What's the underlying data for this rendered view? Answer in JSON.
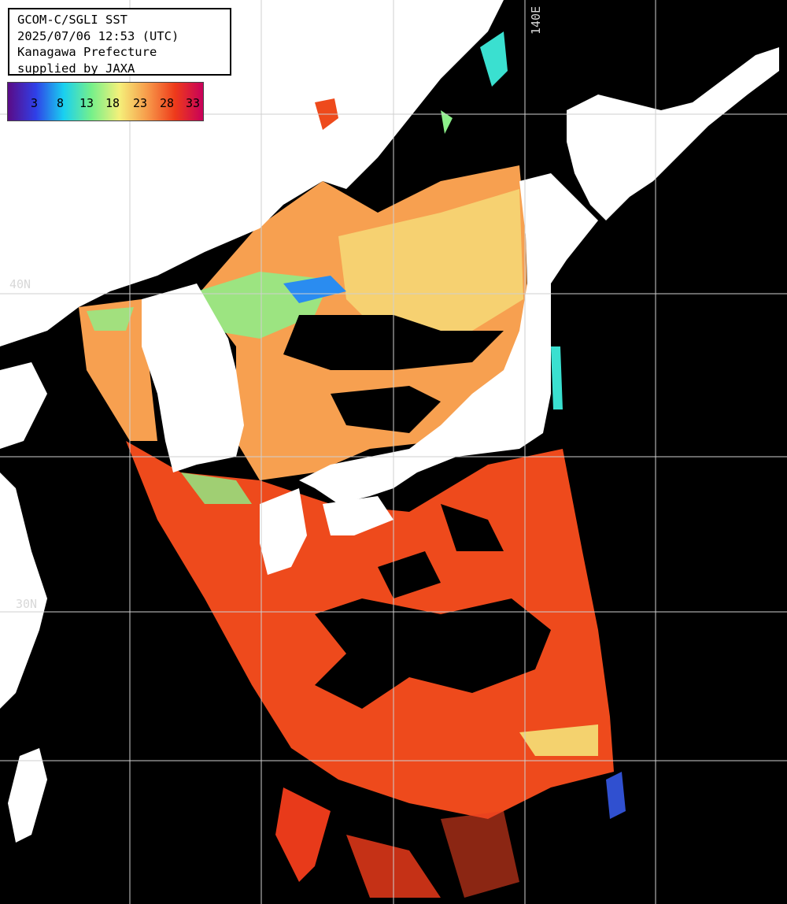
{
  "title": {
    "line1": "GCOM-C/SGLI SST",
    "line2": "2025/07/06 12:53 (UTC)",
    "line3": "Kanagawa Prefecture",
    "line4": "supplied by JAXA"
  },
  "colorbar": {
    "labels": [
      "3",
      "8",
      "13",
      "18",
      "23",
      "28",
      "33"
    ],
    "colors": [
      "#5a0b86",
      "#2f40e8",
      "#19d0f0",
      "#76f08a",
      "#f5f07a",
      "#f79a4a",
      "#ee3a1a",
      "#c8005a"
    ]
  },
  "grid": {
    "lat_labels": [
      "40N",
      "30N"
    ],
    "lon_labels": [
      "140E"
    ]
  },
  "colors": {
    "land": "#ffffff",
    "cloud": "#000000",
    "warm_sea": "#ee4a1c",
    "mid_sea": "#f7a050",
    "cool_sea": "#f4ea7c",
    "grid": "#cfcfcf"
  }
}
